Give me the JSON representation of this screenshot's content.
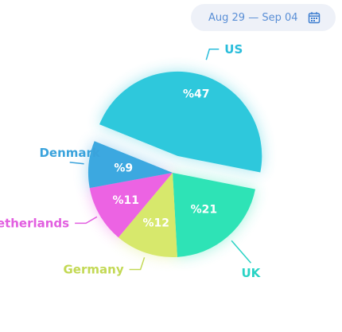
{
  "date_range": {
    "label": "Aug 29 — Sep 04",
    "icon": "calendar-icon"
  },
  "chart_data": {
    "type": "pie",
    "categories": [
      "US",
      "UK",
      "Germany",
      "Netherlands",
      "Denmark"
    ],
    "values": [
      47,
      21,
      12,
      11,
      9
    ],
    "value_labels": [
      "%47",
      "%21",
      "%12",
      "%11",
      "%9"
    ],
    "colors": [
      "#2ec8dc",
      "#2ee3b6",
      "#d7e86c",
      "#ec63e3",
      "#3ca8e0"
    ],
    "label_colors": [
      "#29bddb",
      "#29d3c5",
      "#c3d955",
      "#e25fe0",
      "#3aa3dc"
    ],
    "exploded": "US"
  }
}
